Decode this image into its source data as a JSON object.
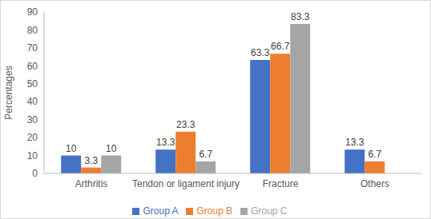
{
  "chart_data": {
    "type": "bar",
    "y_label": "Percentages",
    "categories": [
      "Arthritis",
      "Tendon or ligament injury",
      "Fracture",
      "Others"
    ],
    "series": [
      {
        "name": "Group A",
        "color": "#4472c4",
        "values": [
          10,
          13.3,
          63.3,
          13.3
        ]
      },
      {
        "name": "Group B",
        "color": "#ed7d31",
        "values": [
          3.3,
          23.3,
          66.7,
          6.7
        ]
      },
      {
        "name": "Group C",
        "color": "#a5a5a5",
        "values": [
          10,
          6.7,
          83.3,
          0
        ]
      }
    ],
    "ylim": [
      0,
      90
    ],
    "yticks": [
      0,
      10,
      20,
      30,
      40,
      50,
      60,
      70,
      80,
      90
    ],
    "grid": false,
    "legend": "bottom",
    "data_labels": true
  }
}
